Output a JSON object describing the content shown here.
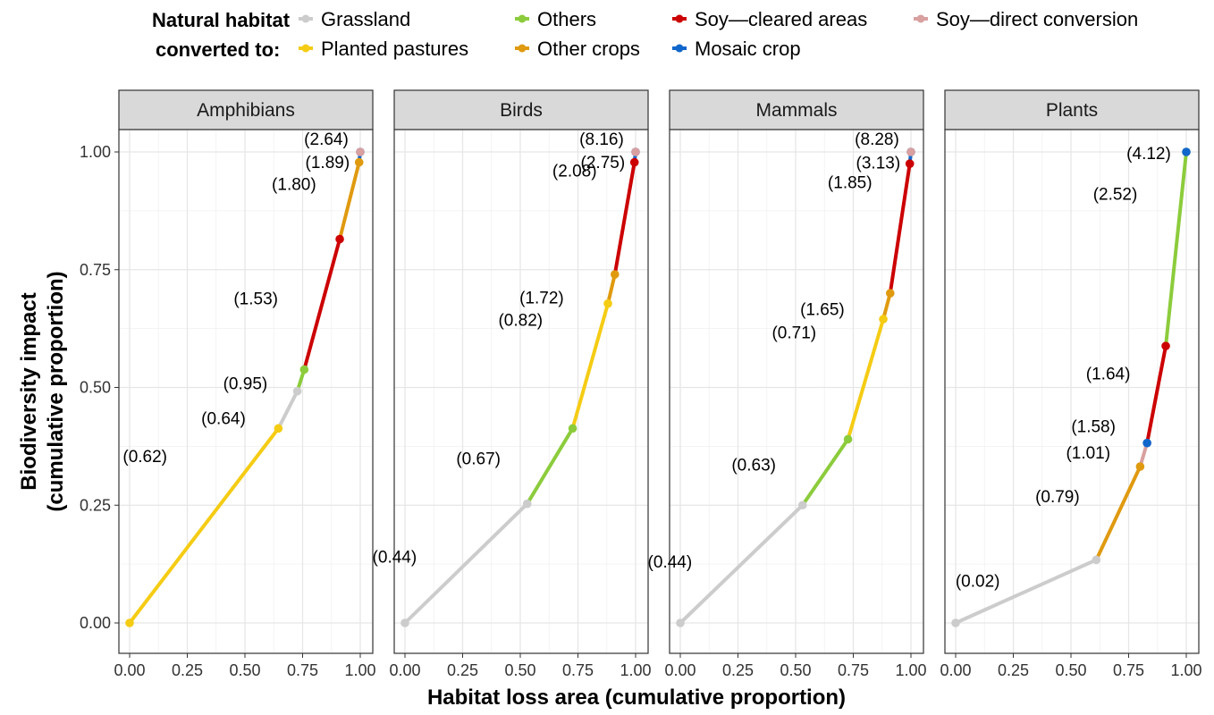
{
  "legend": {
    "title_line1": "Natural habitat",
    "title_line2": "converted to:",
    "items": [
      {
        "label": "Grassland",
        "color": "#cccccc"
      },
      {
        "label": "Planted pastures",
        "color": "#f5cc14"
      },
      {
        "label": "Others",
        "color": "#8ccc3c"
      },
      {
        "label": "Other crops",
        "color": "#e09a10"
      },
      {
        "label": "Soy—cleared areas",
        "color": "#cc0000"
      },
      {
        "label": "Mosaic crop",
        "color": "#1166cc"
      },
      {
        "label": "Soy—direct conversion",
        "color": "#d9a0a0"
      }
    ]
  },
  "chart_data": {
    "type": "line",
    "xlabel": "Habitat loss area (cumulative proportion)",
    "ylabel_line1": "Biodiversity impact",
    "ylabel_line2": "(cumulative proportion)",
    "xlim": [
      0,
      1
    ],
    "ylim": [
      0,
      1
    ],
    "x_ticks": [
      "0.00",
      "0.25",
      "0.50",
      "0.75",
      "1.00"
    ],
    "y_ticks": [
      "0.00",
      "0.25",
      "0.50",
      "0.75",
      "1.00"
    ],
    "grid": true,
    "legend_position": "top",
    "panels": [
      {
        "name": "Amphibians",
        "segments": [
          {
            "cat": "Planted pastures",
            "x0": 0.0,
            "y0": 0.0,
            "x1": 0.645,
            "y1": 0.413,
            "label": "(0.62)"
          },
          {
            "cat": "Grassland",
            "x0": 0.645,
            "y0": 0.413,
            "x1": 0.727,
            "y1": 0.492,
            "label": "(0.64)"
          },
          {
            "cat": "Others",
            "x0": 0.727,
            "y0": 0.492,
            "x1": 0.757,
            "y1": 0.538,
            "label": "(0.95)"
          },
          {
            "cat": "Soy—cleared areas",
            "x0": 0.757,
            "y0": 0.538,
            "x1": 0.911,
            "y1": 0.815,
            "label": "(1.53)"
          },
          {
            "cat": "Other crops",
            "x0": 0.911,
            "y0": 0.815,
            "x1": 0.995,
            "y1": 0.978,
            "label": "(1.80)"
          },
          {
            "cat": "Mosaic crop",
            "x0": 0.995,
            "y0": 0.978,
            "x1": 1.0,
            "y1": 1.0,
            "label": "(1.89)"
          },
          {
            "cat": "Soy—direct conversion",
            "x0": 1.0,
            "y0": 1.0,
            "x1": 1.0,
            "y1": 1.0,
            "label": "(2.64)"
          }
        ]
      },
      {
        "name": "Birds",
        "segments": [
          {
            "cat": "Grassland",
            "x0": 0.0,
            "y0": 0.0,
            "x1": 0.53,
            "y1": 0.253,
            "label": "(0.44)"
          },
          {
            "cat": "Others",
            "x0": 0.53,
            "y0": 0.253,
            "x1": 0.727,
            "y1": 0.413,
            "label": "(0.67)"
          },
          {
            "cat": "Planted pastures",
            "x0": 0.727,
            "y0": 0.413,
            "x1": 0.88,
            "y1": 0.678,
            "label": "(0.82)"
          },
          {
            "cat": "Other crops",
            "x0": 0.88,
            "y0": 0.678,
            "x1": 0.91,
            "y1": 0.74,
            "label": "(1.72)"
          },
          {
            "cat": "Soy—cleared areas",
            "x0": 0.91,
            "y0": 0.74,
            "x1": 0.995,
            "y1": 0.978,
            "label": "(2.08)"
          },
          {
            "cat": "Mosaic crop",
            "x0": 0.995,
            "y0": 0.978,
            "x1": 1.0,
            "y1": 1.0,
            "label": "(2.75)"
          },
          {
            "cat": "Soy—direct conversion",
            "x0": 1.0,
            "y0": 1.0,
            "x1": 1.0,
            "y1": 1.0,
            "label": "(8.16)"
          }
        ]
      },
      {
        "name": "Mammals",
        "segments": [
          {
            "cat": "Grassland",
            "x0": 0.0,
            "y0": 0.0,
            "x1": 0.53,
            "y1": 0.25,
            "label": "(0.44)"
          },
          {
            "cat": "Others",
            "x0": 0.53,
            "y0": 0.25,
            "x1": 0.727,
            "y1": 0.39,
            "label": "(0.63)"
          },
          {
            "cat": "Planted pastures",
            "x0": 0.727,
            "y0": 0.39,
            "x1": 0.88,
            "y1": 0.645,
            "label": "(0.71)"
          },
          {
            "cat": "Other crops",
            "x0": 0.88,
            "y0": 0.645,
            "x1": 0.91,
            "y1": 0.7,
            "label": "(1.65)"
          },
          {
            "cat": "Soy—cleared areas",
            "x0": 0.91,
            "y0": 0.7,
            "x1": 0.995,
            "y1": 0.975,
            "label": "(1.85)"
          },
          {
            "cat": "Mosaic crop",
            "x0": 0.995,
            "y0": 0.975,
            "x1": 1.0,
            "y1": 1.0,
            "label": "(3.13)"
          },
          {
            "cat": "Soy—direct conversion",
            "x0": 1.0,
            "y0": 1.0,
            "x1": 1.0,
            "y1": 1.0,
            "label": "(8.28)"
          }
        ]
      },
      {
        "name": "Plants",
        "segments": [
          {
            "cat": "Grassland",
            "x0": 0.0,
            "y0": 0.0,
            "x1": 0.61,
            "y1": 0.134,
            "label": "(0.02)"
          },
          {
            "cat": "Other crops",
            "x0": 0.61,
            "y0": 0.134,
            "x1": 0.8,
            "y1": 0.332,
            "label": "(0.79)"
          },
          {
            "cat": "Soy—direct conversion",
            "x0": 0.8,
            "y0": 0.332,
            "x1": 0.83,
            "y1": 0.382,
            "label": "(1.01)"
          },
          {
            "cat": "Soy—cleared areas",
            "x0": 0.83,
            "y0": 0.382,
            "x1": 0.911,
            "y1": 0.588,
            "label": "(1.64)"
          },
          {
            "cat": "Others",
            "x0": 0.911,
            "y0": 0.588,
            "x1": 1.0,
            "y1": 1.0,
            "label": "(2.52)"
          },
          {
            "cat": "Mosaic crop",
            "x0": 1.0,
            "y0": 1.0,
            "x1": 1.0,
            "y1": 1.0,
            "label": "(4.12)"
          },
          {
            "cat": "Mosaic crop",
            "x0": 0.83,
            "y0": 0.382,
            "x1": 0.83,
            "y1": 0.382,
            "label": "(1.58)"
          }
        ]
      }
    ]
  }
}
